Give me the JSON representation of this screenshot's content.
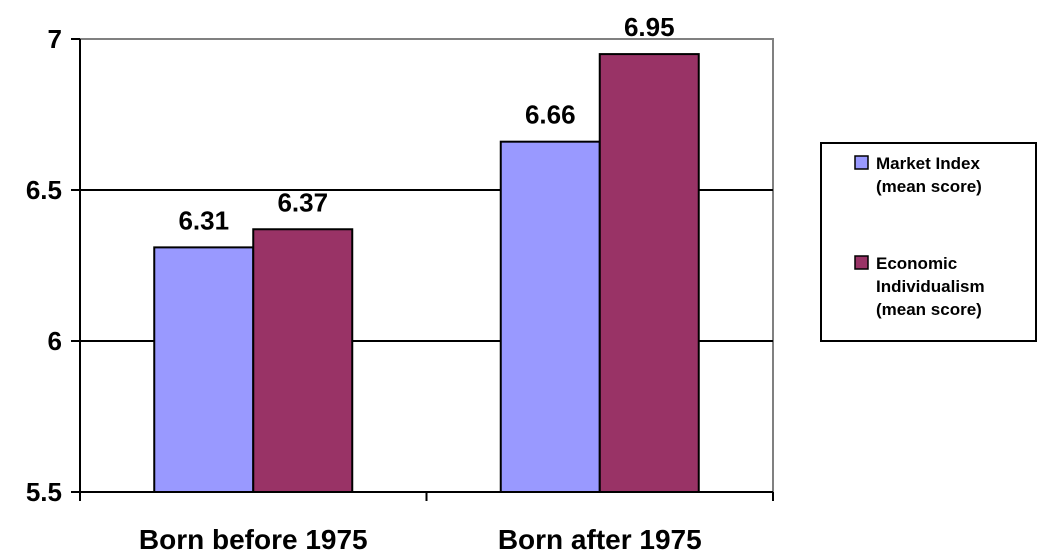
{
  "chart_data": {
    "type": "bar",
    "categories": [
      "Born before 1975",
      "Born after 1975"
    ],
    "series": [
      {
        "name": "Market Index (mean score)",
        "lines": [
          "Market Index",
          "(mean score)"
        ],
        "color": "#9999ff",
        "values": [
          6.31,
          6.66
        ]
      },
      {
        "name": "Economic Individualism (mean score)",
        "lines": [
          "Economic",
          "Individualism",
          "(mean score)"
        ],
        "color": "#993366",
        "values": [
          6.37,
          6.95
        ]
      }
    ],
    "ylim": [
      5.5,
      7
    ],
    "yticks": [
      "5.5",
      "6",
      "6.5",
      "7"
    ],
    "data_labels": [
      [
        "6.31",
        "6.66"
      ],
      [
        "6.37",
        "6.95"
      ]
    ],
    "grid": true,
    "legend_position": "right",
    "title": "",
    "xlabel": "",
    "ylabel": ""
  }
}
